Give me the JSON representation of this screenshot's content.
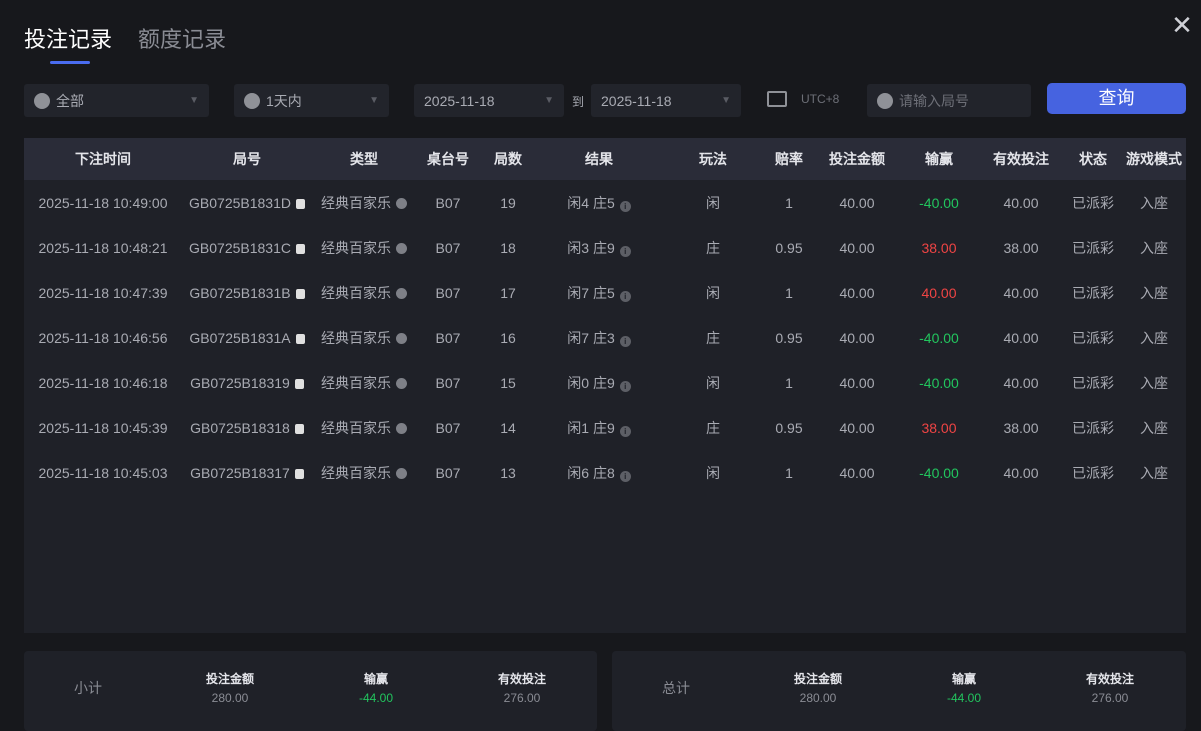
{
  "tabs": [
    "投注记录",
    "额度记录"
  ],
  "filters": {
    "type": "全部",
    "range": "1天内",
    "date_from": "2025-11-18",
    "to": "到",
    "date_to": "2025-11-18",
    "timezone": "UTC+8",
    "round_placeholder": "请输入局号",
    "query": "查询"
  },
  "columns": [
    "下注时间",
    "局号",
    "类型",
    "桌台号",
    "局数",
    "结果",
    "玩法",
    "赔率",
    "投注金额",
    "输赢",
    "有效投注",
    "状态",
    "游戏模式"
  ],
  "rows": [
    [
      "2025-11-18 10:49:00",
      "GB0725B1831D",
      "经典百家乐",
      "B07",
      "19",
      "闲4 庄5",
      "闲",
      "1",
      "40.00",
      "-40.00",
      "40.00",
      "已派彩",
      "入座"
    ],
    [
      "2025-11-18 10:48:21",
      "GB0725B1831C",
      "经典百家乐",
      "B07",
      "18",
      "闲3 庄9",
      "庄",
      "0.95",
      "40.00",
      "38.00",
      "38.00",
      "已派彩",
      "入座"
    ],
    [
      "2025-11-18 10:47:39",
      "GB0725B1831B",
      "经典百家乐",
      "B07",
      "17",
      "闲7 庄5",
      "闲",
      "1",
      "40.00",
      "40.00",
      "40.00",
      "已派彩",
      "入座"
    ],
    [
      "2025-11-18 10:46:56",
      "GB0725B1831A",
      "经典百家乐",
      "B07",
      "16",
      "闲7 庄3",
      "庄",
      "0.95",
      "40.00",
      "-40.00",
      "40.00",
      "已派彩",
      "入座"
    ],
    [
      "2025-11-18 10:46:18",
      "GB0725B18319",
      "经典百家乐",
      "B07",
      "15",
      "闲0 庄9",
      "闲",
      "1",
      "40.00",
      "-40.00",
      "40.00",
      "已派彩",
      "入座"
    ],
    [
      "2025-11-18 10:45:39",
      "GB0725B18318",
      "经典百家乐",
      "B07",
      "14",
      "闲1 庄9",
      "庄",
      "0.95",
      "40.00",
      "38.00",
      "38.00",
      "已派彩",
      "入座"
    ],
    [
      "2025-11-18 10:45:03",
      "GB0725B18317",
      "经典百家乐",
      "B07",
      "13",
      "闲6 庄8",
      "闲",
      "1",
      "40.00",
      "-40.00",
      "40.00",
      "已派彩",
      "入座"
    ]
  ],
  "subtotal": {
    "label": "小计",
    "items": [
      {
        "t": "投注金额",
        "v": "280.00"
      },
      {
        "t": "输赢",
        "v": "-44.00"
      },
      {
        "t": "有效投注",
        "v": "276.00"
      }
    ]
  },
  "total": {
    "label": "总计",
    "items": [
      {
        "t": "投注金额",
        "v": "280.00"
      },
      {
        "t": "输赢",
        "v": "-44.00"
      },
      {
        "t": "有效投注",
        "v": "276.00"
      }
    ]
  },
  "colors": {
    "accent": "#4663e0",
    "loss": "#22c55e",
    "win": "#ef4444"
  }
}
